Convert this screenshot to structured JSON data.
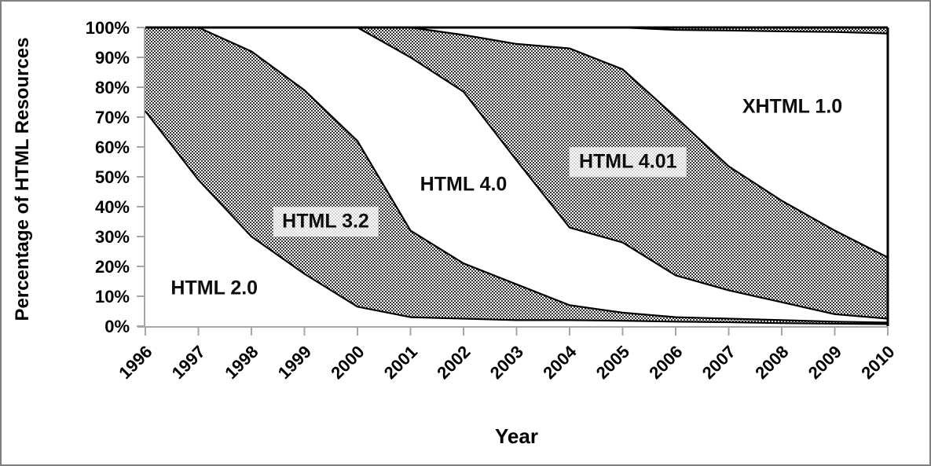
{
  "page": {
    "frame_color": "#7f7f7f",
    "background": "#ffffff"
  },
  "chart_data": {
    "type": "area",
    "stacked": true,
    "title": "",
    "xlabel": "Year",
    "ylabel": "Percentage of HTML Resources",
    "x": [
      1996,
      1997,
      1998,
      1999,
      2000,
      2001,
      2002,
      2003,
      2004,
      2005,
      2006,
      2007,
      2008,
      2009,
      2010
    ],
    "xtick_labels": [
      "1996",
      "1997",
      "1998",
      "1999",
      "2000",
      "2001",
      "2002",
      "2003",
      "2004",
      "2005",
      "2006",
      "2007",
      "2008",
      "2009",
      "2010"
    ],
    "ytick_labels": [
      "0%",
      "10%",
      "20%",
      "30%",
      "40%",
      "50%",
      "60%",
      "70%",
      "80%",
      "90%",
      "100%"
    ],
    "ylim": [
      0,
      100
    ],
    "grid": false,
    "legend": "labels drawn inside plot area",
    "series": [
      {
        "name": "HTML 2.0",
        "pattern": "solid-white",
        "values": [
          72,
          49,
          30,
          17.5,
          6.5,
          3,
          2.5,
          2,
          2,
          1.8,
          1.5,
          1.3,
          1,
          0.8,
          0.7
        ]
      },
      {
        "name": "HTML 3.2",
        "pattern": "crosshatch",
        "values": [
          28,
          51,
          62,
          61.5,
          55.5,
          29,
          18.5,
          12,
          5,
          2.7,
          1.5,
          1.2,
          1,
          0.7,
          0.5
        ]
      },
      {
        "name": "HTML 4.0",
        "pattern": "solid-white",
        "values": [
          0,
          0,
          8,
          21,
          38,
          58,
          57.5,
          41.5,
          26,
          23.5,
          14,
          9.5,
          6,
          2.5,
          1.3
        ]
      },
      {
        "name": "HTML 4.01",
        "pattern": "crosshatch",
        "values": [
          0,
          0,
          0,
          0,
          0,
          10,
          19,
          39,
          60,
          58,
          53,
          41.5,
          34,
          28,
          20.5
        ]
      },
      {
        "name": "XHTML 1.0",
        "pattern": "solid-white",
        "values": [
          0,
          0,
          0,
          0,
          0,
          0,
          2.5,
          5.5,
          7,
          14,
          29.2,
          45.5,
          56.7,
          66.5,
          75
        ]
      },
      {
        "name": "",
        "pattern": "crosshatch",
        "values": [
          0,
          0,
          0,
          0,
          0,
          0,
          0,
          0,
          0,
          0,
          0.8,
          1,
          1.3,
          1.5,
          2
        ]
      }
    ],
    "annotations": [
      {
        "label": "HTML 2.0",
        "x": 1997.3,
        "y": 12.6,
        "boxed": false
      },
      {
        "label": "HTML 3.2",
        "x": 1999.4,
        "y": 35.0,
        "boxed": true
      },
      {
        "label": "HTML 4.0",
        "x": 2002.0,
        "y": 47.5,
        "boxed": false
      },
      {
        "label": "HTML 4.01",
        "x": 2005.1,
        "y": 55.0,
        "boxed": true
      },
      {
        "label": "XHTML 1.0",
        "x": 2008.2,
        "y": 73.5,
        "boxed": false
      }
    ],
    "colors": {
      "boundary_line": "#000000",
      "axis": "#a6a6a6",
      "hatch_dark": "#333333",
      "hatch_light": "#ffffff",
      "text": "#000000",
      "label_box_bg": "rgba(255,255,255,0.78)"
    }
  }
}
